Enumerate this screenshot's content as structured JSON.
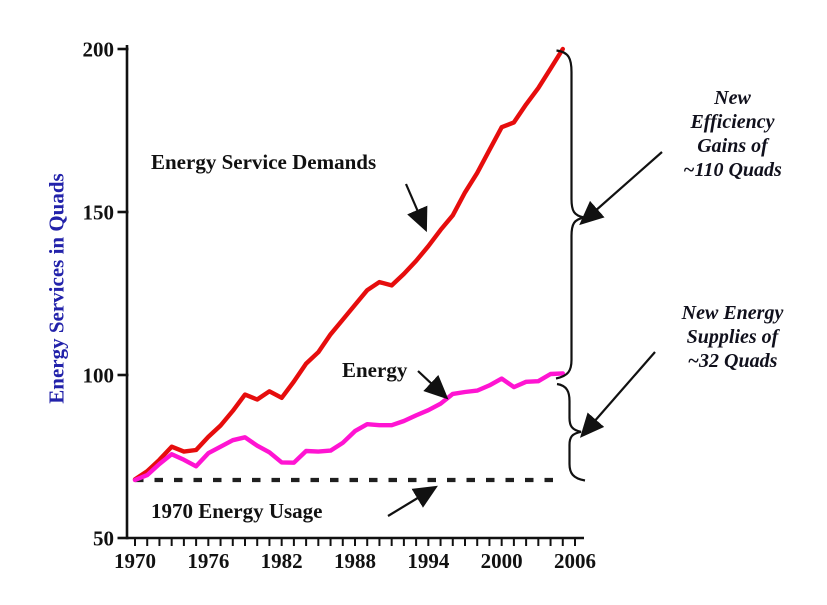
{
  "chart_data": {
    "type": "line",
    "title": "",
    "xlabel": "",
    "ylabel": "Energy Services in Quads",
    "xlim": [
      1970,
      2006
    ],
    "ylim": [
      50,
      200
    ],
    "x_tick_labels": [
      1970,
      1976,
      1982,
      1988,
      1994,
      2000,
      2006
    ],
    "x_minor_tick_step": 1,
    "y_tick_labels": [
      50,
      100,
      150,
      200
    ],
    "grid": false,
    "legend_position": "inline-labels",
    "x": [
      1970,
      1971,
      1972,
      1973,
      1974,
      1975,
      1976,
      1977,
      1978,
      1979,
      1980,
      1981,
      1982,
      1983,
      1984,
      1985,
      1986,
      1987,
      1988,
      1989,
      1990,
      1991,
      1992,
      1993,
      1994,
      1995,
      1996,
      1997,
      1998,
      1999,
      2000,
      2001,
      2002,
      2003,
      2004,
      2005
    ],
    "series": [
      {
        "name": "Energy Service Demands",
        "color": "#e60d0d",
        "values": [
          68,
          70.5,
          74,
          78,
          76.5,
          77,
          81,
          84.5,
          89,
          94,
          92.5,
          95,
          93,
          98,
          103.5,
          107,
          112.5,
          117,
          121.5,
          126,
          128.5,
          127.5,
          131,
          135,
          139.5,
          144.5,
          149,
          156,
          162,
          169,
          176,
          177.5,
          183,
          188,
          194,
          200
        ]
      },
      {
        "name": "Energy",
        "color": "#ff14d2",
        "values": [
          67.8,
          69.3,
          72.7,
          75.7,
          74,
          72,
          76,
          78,
          80,
          80.9,
          78.3,
          76.3,
          73.2,
          73.1,
          76.7,
          76.5,
          76.8,
          79.2,
          82.8,
          84.9,
          84.6,
          84.6,
          85.9,
          87.6,
          89.2,
          91.2,
          94.2,
          94.8,
          95.2,
          96.8,
          98.9,
          96.3,
          97.9,
          98.1,
          100.3,
          100.5
        ]
      }
    ],
    "baseline": {
      "label": "1970 Energy Usage",
      "value": 67.8,
      "style": "dashed",
      "color": "#1f1f1f"
    }
  },
  "labels": {
    "y_axis_title": "Energy Services in Quads",
    "demand_line": "Energy Service Demands",
    "energy_line": "Energy",
    "baseline": "1970 Energy Usage"
  },
  "annotations": {
    "efficiency": {
      "lines": [
        "New",
        "Efficiency",
        "Gains of",
        "~110 Quads"
      ],
      "amount": "~110 Quads"
    },
    "supplies": {
      "lines": [
        "New Energy",
        "Supplies of",
        "~32 Quads"
      ],
      "amount": "~32 Quads"
    }
  },
  "colors": {
    "demand_line": "#e60d0d",
    "energy_line": "#ff14d2",
    "axis_and_text": "#111111",
    "y_axis_title": "#2222aa",
    "baseline_dash": "#1f1f1f"
  }
}
